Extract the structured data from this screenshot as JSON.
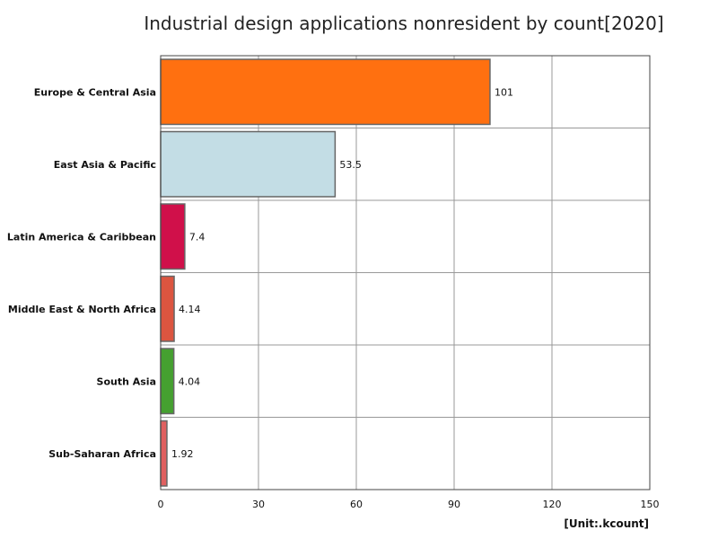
{
  "chart_data": {
    "type": "bar",
    "orientation": "horizontal",
    "title": "Industrial design applications nonresident by count[2020]",
    "unit_label": "[Unit:.kcount]",
    "categories": [
      "Europe & Central Asia",
      "East Asia & Pacific",
      "Latin America & Caribbean",
      "Middle East & North Africa",
      "South Asia",
      "Sub-Saharan Africa"
    ],
    "values": [
      101,
      53.5,
      7.4,
      4.14,
      4.04,
      1.92
    ],
    "value_labels": [
      "101",
      "53.5",
      "7.4",
      "4.14",
      "4.04",
      "1.92"
    ],
    "colors": [
      "#ff7010",
      "#c3dde5",
      "#d0104a",
      "#dc5540",
      "#45a030",
      "#e06060"
    ],
    "xlim": [
      0,
      150
    ],
    "xticks": [
      0,
      30,
      60,
      90,
      120,
      150
    ],
    "grid": true,
    "legend": "none"
  }
}
